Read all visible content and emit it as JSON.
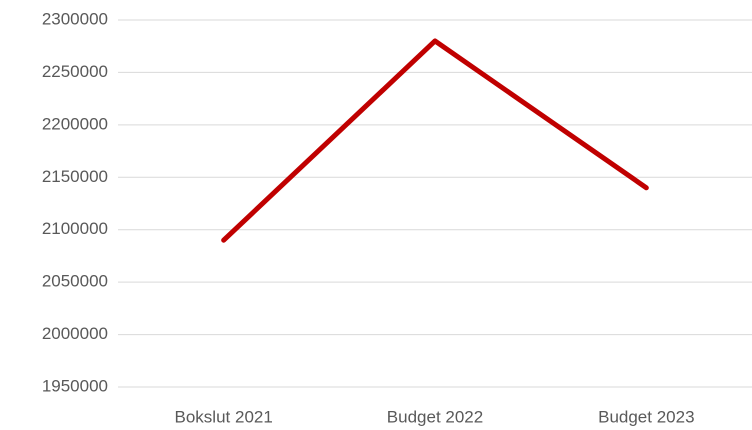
{
  "chart_data": {
    "type": "line",
    "categories": [
      "Bokslut 2021",
      "Budget 2022",
      "Budget 2023"
    ],
    "values": [
      2090000,
      2280000,
      2140000
    ],
    "color": "#c00000",
    "ylim": [
      1950000,
      2300000
    ],
    "yticks": [
      1950000,
      2000000,
      2050000,
      2100000,
      2150000,
      2200000,
      2250000,
      2300000
    ],
    "grid": true
  }
}
